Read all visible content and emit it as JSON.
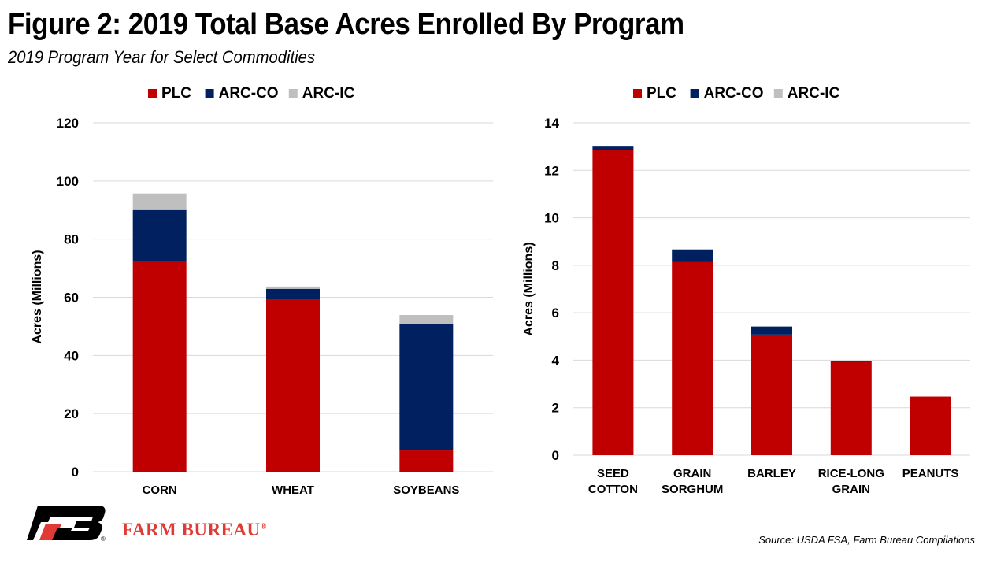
{
  "header": {
    "title": "Figure 2: 2019 Total Base Acres Enrolled By Program",
    "subtitle": "2019 Program Year for Select Commodities"
  },
  "colors": {
    "PLC": "#c00000",
    "ARC-CO": "#002060",
    "ARC-IC": "#bfbfbf",
    "grid": "#d9d9d9",
    "brand": "#e03a36"
  },
  "chart_data": [
    {
      "type": "bar",
      "stacked": true,
      "title": "",
      "xlabel": "",
      "ylabel": "Acres (Millions)",
      "ylim": [
        0,
        120
      ],
      "yticks": [
        0,
        20,
        40,
        60,
        80,
        100,
        120
      ],
      "grid": true,
      "legend": {
        "position": "top-center",
        "entries": [
          "PLC",
          "ARC-CO",
          "ARC-IC"
        ]
      },
      "categories": [
        "CORN",
        "WHEAT",
        "SOYBEANS"
      ],
      "series": [
        {
          "name": "PLC",
          "values": [
            72.1,
            59.1,
            7.3
          ]
        },
        {
          "name": "ARC-CO",
          "values": [
            17.9,
            3.8,
            43.4
          ]
        },
        {
          "name": "ARC-IC",
          "values": [
            5.7,
            0.8,
            3.2
          ]
        }
      ]
    },
    {
      "type": "bar",
      "stacked": true,
      "title": "",
      "xlabel": "",
      "ylabel": "Acres (Millions)",
      "ylim": [
        0,
        14
      ],
      "yticks": [
        0,
        2,
        4,
        6,
        8,
        10,
        12,
        14
      ],
      "grid": true,
      "legend": {
        "position": "top-center",
        "entries": [
          "PLC",
          "ARC-CO",
          "ARC-IC"
        ]
      },
      "categories": [
        [
          "SEED",
          "COTTON"
        ],
        [
          "GRAIN",
          "SORGHUM"
        ],
        [
          "BARLEY"
        ],
        [
          "RICE-LONG",
          "GRAIN"
        ],
        [
          "PEANUTS"
        ]
      ],
      "series": [
        {
          "name": "PLC",
          "values": [
            12.85,
            8.13,
            5.08,
            3.93,
            2.47
          ]
        },
        {
          "name": "ARC-CO",
          "values": [
            0.15,
            0.51,
            0.34,
            0.04,
            0.0
          ]
        },
        {
          "name": "ARC-IC",
          "values": [
            0.0,
            0.05,
            0.0,
            0.01,
            0.0
          ]
        }
      ]
    }
  ],
  "footer": {
    "brand": "FARM BUREAU",
    "brand_mark": "®",
    "source": "Source: USDA FSA, Farm Bureau Compilations"
  }
}
